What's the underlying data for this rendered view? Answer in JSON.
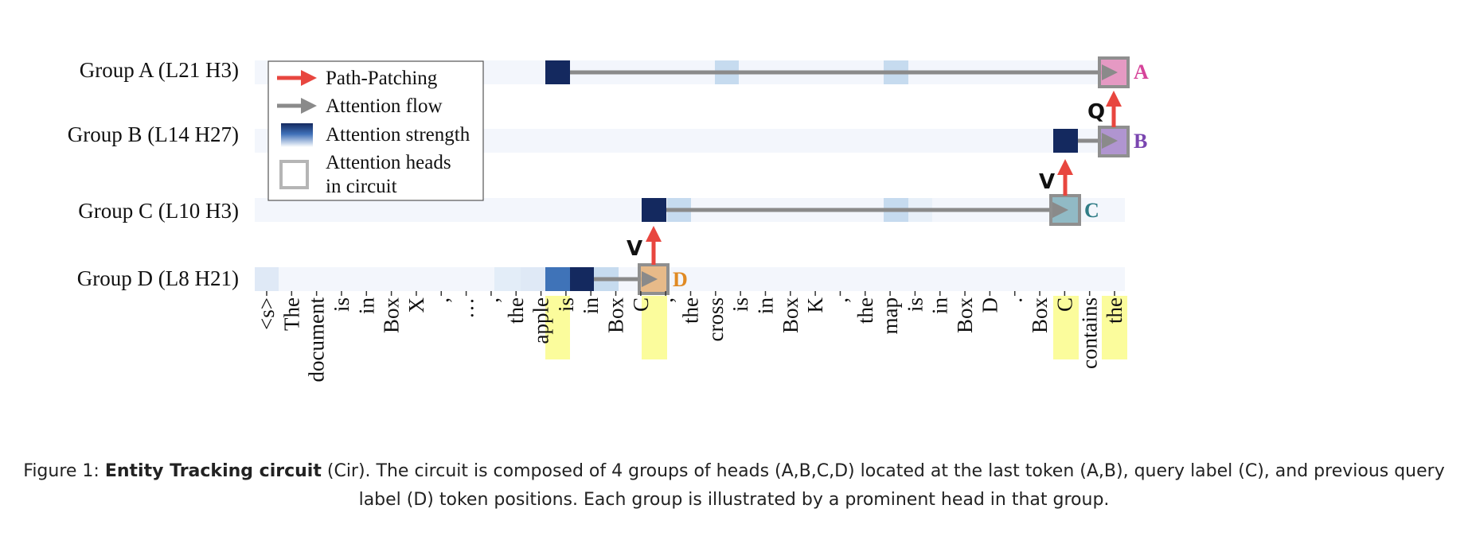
{
  "figure": {
    "rows": [
      {
        "id": "A",
        "label": "Group A (L21 H3)",
        "head_letter": "A",
        "letter_color": "#d6449a",
        "box_fill": "#e38fbd"
      },
      {
        "id": "B",
        "label": "Group B (L14 H27)",
        "head_letter": "B",
        "letter_color": "#7a46b0",
        "box_fill": "#a98bcb"
      },
      {
        "id": "C",
        "label": "Group C (L10 H3)",
        "head_letter": "C",
        "letter_color": "#2f7c86",
        "box_fill": "#86b4bf"
      },
      {
        "id": "D",
        "label": "Group D (L8 H21)",
        "head_letter": "D",
        "letter_color": "#e08a23",
        "box_fill": "#e6b47c"
      }
    ],
    "tokens": [
      "<s>",
      "The",
      "document",
      "is",
      "in",
      "Box",
      "X",
      ",",
      "…",
      ",",
      "the",
      "apple",
      "is",
      "in",
      "Box",
      "C",
      ",",
      "the",
      "cross",
      "is",
      "in",
      "Box",
      "K",
      ",",
      "the",
      "map",
      "is",
      "in",
      "Box",
      "D",
      ".",
      "Box",
      "C",
      "contains",
      "the"
    ],
    "highlighted_tokens": [
      "apple",
      "C (query label)",
      "C (previous query label)",
      "the (last token)"
    ],
    "edge_labels": {
      "a_b": "Q",
      "b_c": "V",
      "c_d": "V"
    },
    "legend": {
      "path_patching": "Path-Patching",
      "attention_flow": "Attention flow",
      "attention_strength": "Attention strength",
      "heads_line1": "Attention heads",
      "heads_line2": "in circuit"
    },
    "colors": {
      "path_arrow": "#e8463f",
      "flow_arrow": "#8a8a8a",
      "strong_attention": "#14295f",
      "highlight": "#fbfc9c"
    }
  },
  "caption": {
    "prefix": "Figure 1: ",
    "bold": "Entity Tracking circuit",
    "line1_rest": " (Cir). The circuit is composed of 4 groups of heads (A,B,C,D) located at the last token (A,B), query label (C), and previous query",
    "line2": "label (D) token positions. Each group is illustrated by a prominent head in that group."
  }
}
